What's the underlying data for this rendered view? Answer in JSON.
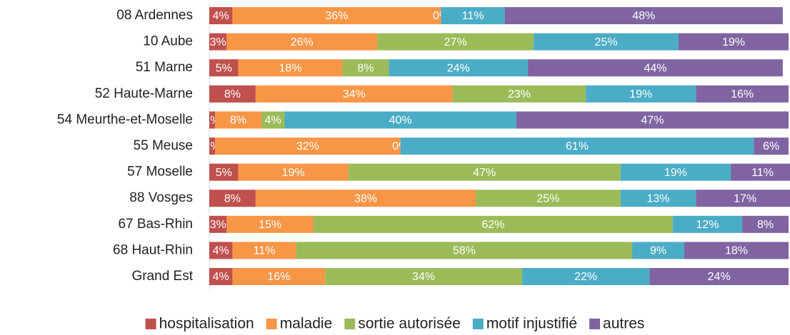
{
  "chart_data": {
    "type": "stacked_bar_horizontal",
    "categories": [
      "08 Ardennes",
      "10 Aube",
      "51 Marne",
      "52 Haute-Marne",
      "54 Meurthe-et-Moselle",
      "55 Meuse",
      "57 Moselle",
      "88 Vosges",
      "67 Bas-Rhin",
      "68 Haut-Rhin",
      "Grand Est"
    ],
    "xlim": [
      0,
      100
    ],
    "legend": "bottom",
    "series": [
      {
        "name": "hospitalisation",
        "color": "#c0504d",
        "values": [
          4,
          3,
          5,
          8,
          1,
          1,
          5,
          8,
          3,
          4,
          4
        ],
        "value_labels": [
          "4%",
          "3%",
          "5%",
          "8%",
          "1%",
          "1%",
          "5%",
          "8%",
          "3%",
          "4%",
          "4%"
        ]
      },
      {
        "name": "maladie",
        "color": "#f79646",
        "values": [
          36,
          26,
          18,
          34,
          8,
          32,
          19,
          38,
          15,
          11,
          16
        ],
        "value_labels": [
          "36%",
          "26%",
          "18%",
          "34%",
          "8%",
          "32%",
          "19%",
          "38%",
          "15%",
          "11%",
          "16%"
        ]
      },
      {
        "name": "sortie autorisée",
        "color": "#9bbb59",
        "values": [
          0,
          27,
          8,
          23,
          4,
          0,
          47,
          25,
          62,
          58,
          34
        ],
        "value_labels": [
          "0%",
          "27%",
          "8%",
          "23%",
          "4%",
          "0%",
          "47%",
          "25%",
          "62%",
          "58%",
          "34%"
        ]
      },
      {
        "name": "motif injustifié",
        "color": "#4bacc6",
        "values": [
          11,
          25,
          24,
          19,
          40,
          61,
          19,
          13,
          12,
          9,
          22
        ],
        "value_labels": [
          "11%",
          "25%",
          "24%",
          "19%",
          "40%",
          "61%",
          "19%",
          "13%",
          "12%",
          "9%",
          "22%"
        ]
      },
      {
        "name": "autres",
        "color": "#8064a2",
        "values": [
          48,
          19,
          44,
          16,
          47,
          6,
          11,
          17,
          8,
          18,
          24
        ],
        "value_labels": [
          "48%",
          "19%",
          "44%",
          "16%",
          "47%",
          "6%",
          "11%",
          "17%",
          "8%",
          "18%",
          "24%"
        ]
      }
    ]
  }
}
